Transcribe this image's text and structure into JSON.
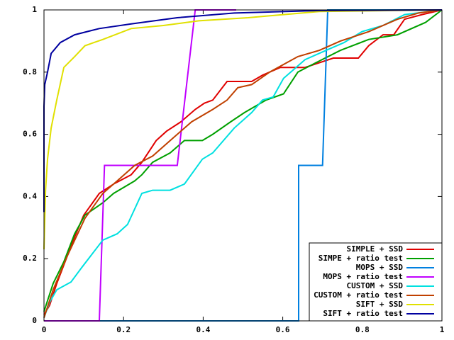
{
  "chart_data": {
    "type": "line",
    "xlim": [
      0,
      1
    ],
    "ylim": [
      0,
      1
    ],
    "xticks": [
      0,
      0.2,
      0.4,
      0.6,
      0.8,
      1
    ],
    "yticks": [
      0,
      0.2,
      0.4,
      0.6,
      0.8,
      1
    ],
    "grid": false,
    "legend": "bottom-right",
    "series": [
      {
        "name": "SIMPLE + SSD",
        "color": "#e00000",
        "x": [
          0,
          0.014,
          0.032,
          0.059,
          0.077,
          0.1,
          0.139,
          0.175,
          0.219,
          0.246,
          0.282,
          0.308,
          0.344,
          0.38,
          0.403,
          0.424,
          0.46,
          0.522,
          0.549,
          0.594,
          0.656,
          0.692,
          0.727,
          0.79,
          0.816,
          0.852,
          0.879,
          0.906,
          0.95,
          1
        ],
        "values": [
          0.02,
          0.05,
          0.12,
          0.21,
          0.27,
          0.34,
          0.41,
          0.44,
          0.47,
          0.51,
          0.58,
          0.61,
          0.64,
          0.68,
          0.7,
          0.71,
          0.77,
          0.77,
          0.79,
          0.815,
          0.815,
          0.83,
          0.845,
          0.845,
          0.885,
          0.92,
          0.92,
          0.97,
          0.985,
          1
        ]
      },
      {
        "name": "SIMPE + ratio test",
        "color": "#00a000",
        "x": [
          0,
          0.023,
          0.05,
          0.077,
          0.103,
          0.148,
          0.175,
          0.228,
          0.246,
          0.273,
          0.317,
          0.353,
          0.398,
          0.424,
          0.469,
          0.504,
          0.558,
          0.602,
          0.638,
          0.683,
          0.745,
          0.816,
          0.888,
          0.959,
          1
        ],
        "values": [
          0.03,
          0.12,
          0.19,
          0.28,
          0.34,
          0.38,
          0.41,
          0.45,
          0.47,
          0.51,
          0.54,
          0.58,
          0.58,
          0.6,
          0.64,
          0.67,
          0.71,
          0.73,
          0.8,
          0.83,
          0.87,
          0.905,
          0.92,
          0.96,
          1
        ]
      },
      {
        "name": "MOPS + SSD",
        "color": "#0080e0",
        "x": [
          0,
          0.64,
          0.64,
          0.7,
          0.713,
          1
        ],
        "values": [
          0,
          0,
          0.5,
          0.5,
          1,
          1
        ]
      },
      {
        "name": "MOPS + ratio test",
        "color": "#c000ff",
        "x": [
          0,
          0.139,
          0.152,
          0.335,
          0.38,
          0.483
        ],
        "values": [
          0,
          0,
          0.5,
          0.5,
          1,
          1
        ]
      },
      {
        "name": "CUSTOM + SSD",
        "color": "#00e0e0",
        "x": [
          0,
          0.014,
          0.032,
          0.068,
          0.094,
          0.148,
          0.184,
          0.21,
          0.246,
          0.273,
          0.317,
          0.353,
          0.398,
          0.424,
          0.478,
          0.522,
          0.549,
          0.576,
          0.602,
          0.656,
          0.709,
          0.754,
          0.799,
          0.852,
          0.906,
          1
        ],
        "values": [
          0.01,
          0.06,
          0.1,
          0.125,
          0.17,
          0.26,
          0.28,
          0.31,
          0.41,
          0.42,
          0.42,
          0.44,
          0.52,
          0.54,
          0.62,
          0.67,
          0.71,
          0.72,
          0.78,
          0.84,
          0.87,
          0.895,
          0.93,
          0.95,
          0.985,
          1
        ]
      },
      {
        "name": "CUSTOM + ratio test",
        "color": "#c04000",
        "x": [
          0,
          0.023,
          0.059,
          0.103,
          0.148,
          0.184,
          0.228,
          0.273,
          0.326,
          0.371,
          0.424,
          0.46,
          0.487,
          0.522,
          0.567,
          0.638,
          0.692,
          0.745,
          0.816,
          0.888,
          0.941,
          1
        ],
        "values": [
          0.01,
          0.1,
          0.21,
          0.33,
          0.41,
          0.45,
          0.5,
          0.53,
          0.59,
          0.64,
          0.68,
          0.71,
          0.75,
          0.76,
          0.8,
          0.85,
          0.87,
          0.9,
          0.93,
          0.97,
          0.99,
          1
        ]
      },
      {
        "name": "SIFT + SSD",
        "color": "#e0e000",
        "x": [
          0,
          0.004,
          0.009,
          0.018,
          0.032,
          0.05,
          0.077,
          0.103,
          0.148,
          0.219,
          0.3,
          0.389,
          0.513,
          0.692,
          1
        ],
        "values": [
          0.23,
          0.42,
          0.52,
          0.62,
          0.71,
          0.815,
          0.85,
          0.885,
          0.905,
          0.94,
          0.95,
          0.965,
          0.975,
          0.995,
          1
        ]
      },
      {
        "name": "SIFT + ratio test",
        "color": "#0000a0",
        "x": [
          0,
          0,
          0.002,
          0.009,
          0.018,
          0.041,
          0.077,
          0.139,
          0.219,
          0.335,
          0.478,
          0.692,
          1
        ],
        "values": [
          0.35,
          0.69,
          0.76,
          0.8,
          0.86,
          0.895,
          0.92,
          0.94,
          0.955,
          0.975,
          0.99,
          0.998,
          1
        ]
      }
    ]
  }
}
